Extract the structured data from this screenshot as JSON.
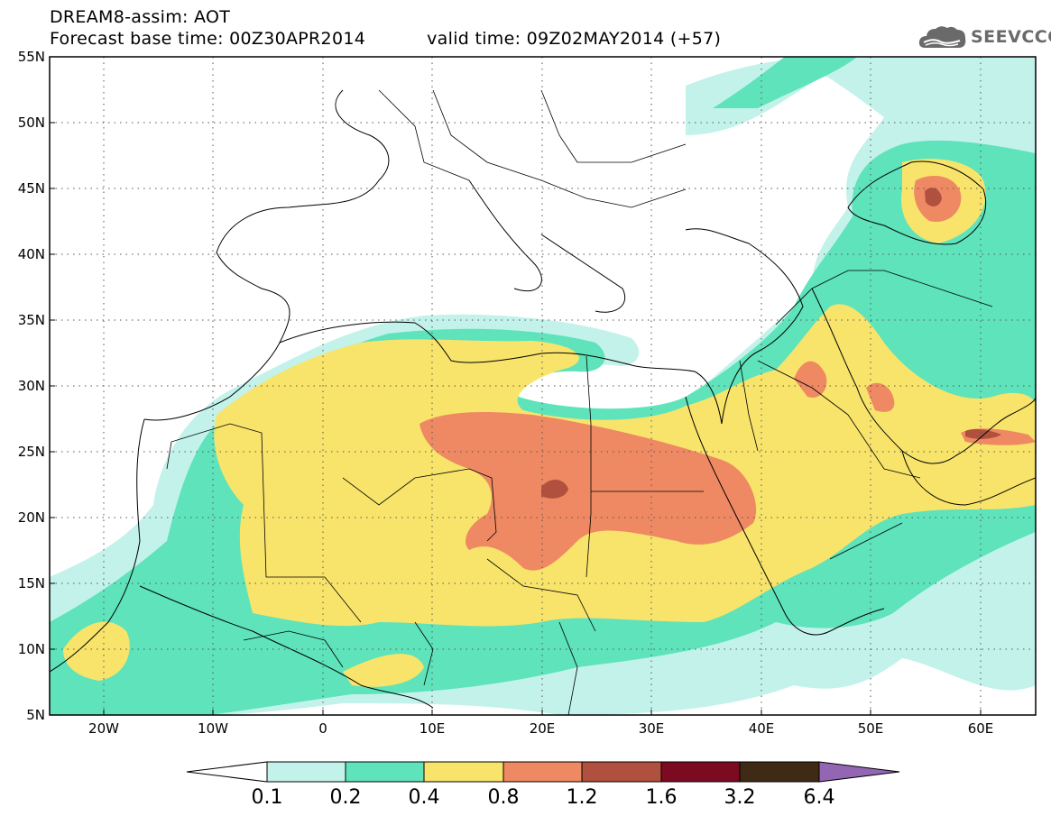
{
  "header": {
    "title": "DREAM8-assim: AOT",
    "base_time": "Forecast base time: 00Z30APR2014",
    "valid_time": "valid time: 09Z02MAY2014 (+57)"
  },
  "logo": {
    "text": "SEEVCCC",
    "icon": "cloud-icon"
  },
  "map": {
    "lat_labels": [
      "55N",
      "50N",
      "45N",
      "40N",
      "35N",
      "30N",
      "25N",
      "20N",
      "15N",
      "10N",
      "5N"
    ],
    "lon_labels": [
      "20W",
      "10W",
      "0",
      "10E",
      "20E",
      "30E",
      "40E",
      "50E",
      "60E"
    ],
    "lat_range": [
      5,
      55
    ],
    "lon_range": [
      -25,
      65
    ],
    "grid": "dotted",
    "variable": "AOT"
  },
  "colorbar": {
    "labels": [
      "0.1",
      "0.2",
      "0.4",
      "0.8",
      "1.2",
      "1.6",
      "3.2",
      "6.4"
    ],
    "colors": [
      "#ffffff",
      "#c3f2eb",
      "#5ee3bb",
      "#f8e46b",
      "#ee8963",
      "#b0503e",
      "#7c0b21",
      "#3e2a15",
      "#9366b3"
    ],
    "colors_meaning": "below 0.1, 0.1-0.2, 0.2-0.4, 0.4-0.8, 0.8-1.2, 1.2-1.6, 1.6-3.2, 3.2-6.4, above 6.4"
  }
}
